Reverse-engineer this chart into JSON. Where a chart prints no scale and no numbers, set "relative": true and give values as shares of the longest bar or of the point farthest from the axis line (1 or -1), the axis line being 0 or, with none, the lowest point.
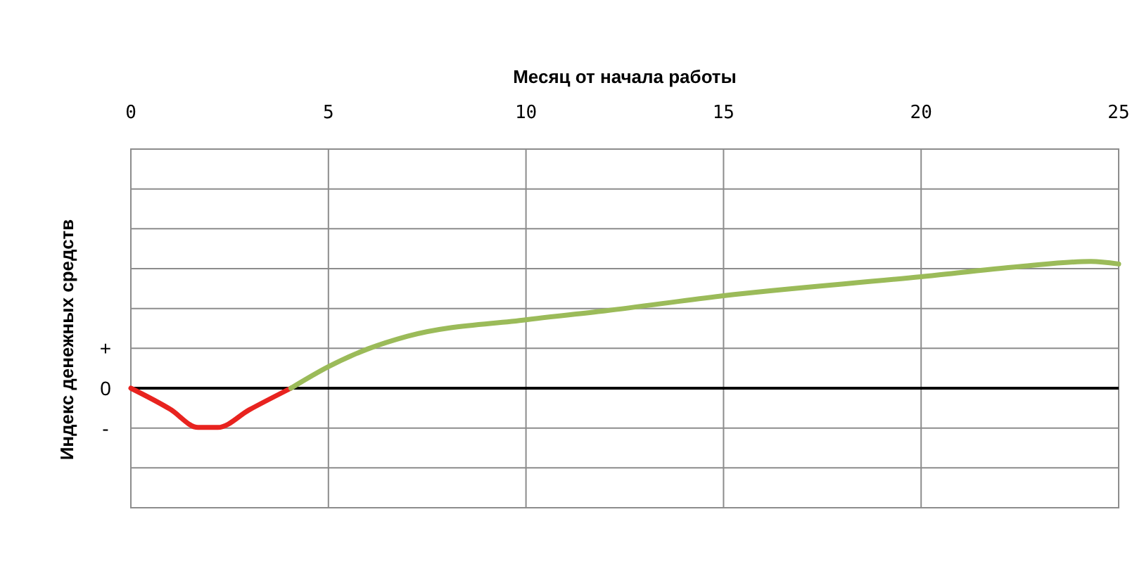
{
  "chart_data": {
    "type": "line",
    "xlabel": "Месяц от начала работы",
    "ylabel": "Индекс денежных средств",
    "relative": true,
    "xlim": [
      0,
      25
    ],
    "xticks": [
      0,
      5,
      10,
      15,
      20,
      25
    ],
    "grid": true,
    "line_style": "solid",
    "annotations": [
      "+",
      "0",
      "-"
    ],
    "series": [
      {
        "color": "#e8231f",
        "x": [
          0,
          1,
          1.7,
          2.2,
          3,
          4.05
        ],
        "values": [
          0,
          -0.167,
          -0.31,
          -0.31,
          -0.17,
          0
        ]
      },
      {
        "color": "#9bbb59",
        "x": [
          4.05,
          5,
          6,
          7,
          10,
          12,
          15,
          20,
          22.5,
          24.3,
          25
        ],
        "values": [
          0,
          0.17,
          0.31,
          0.41,
          0.54,
          0.61,
          0.73,
          0.88,
          0.96,
          1,
          0.98
        ]
      }
    ]
  }
}
